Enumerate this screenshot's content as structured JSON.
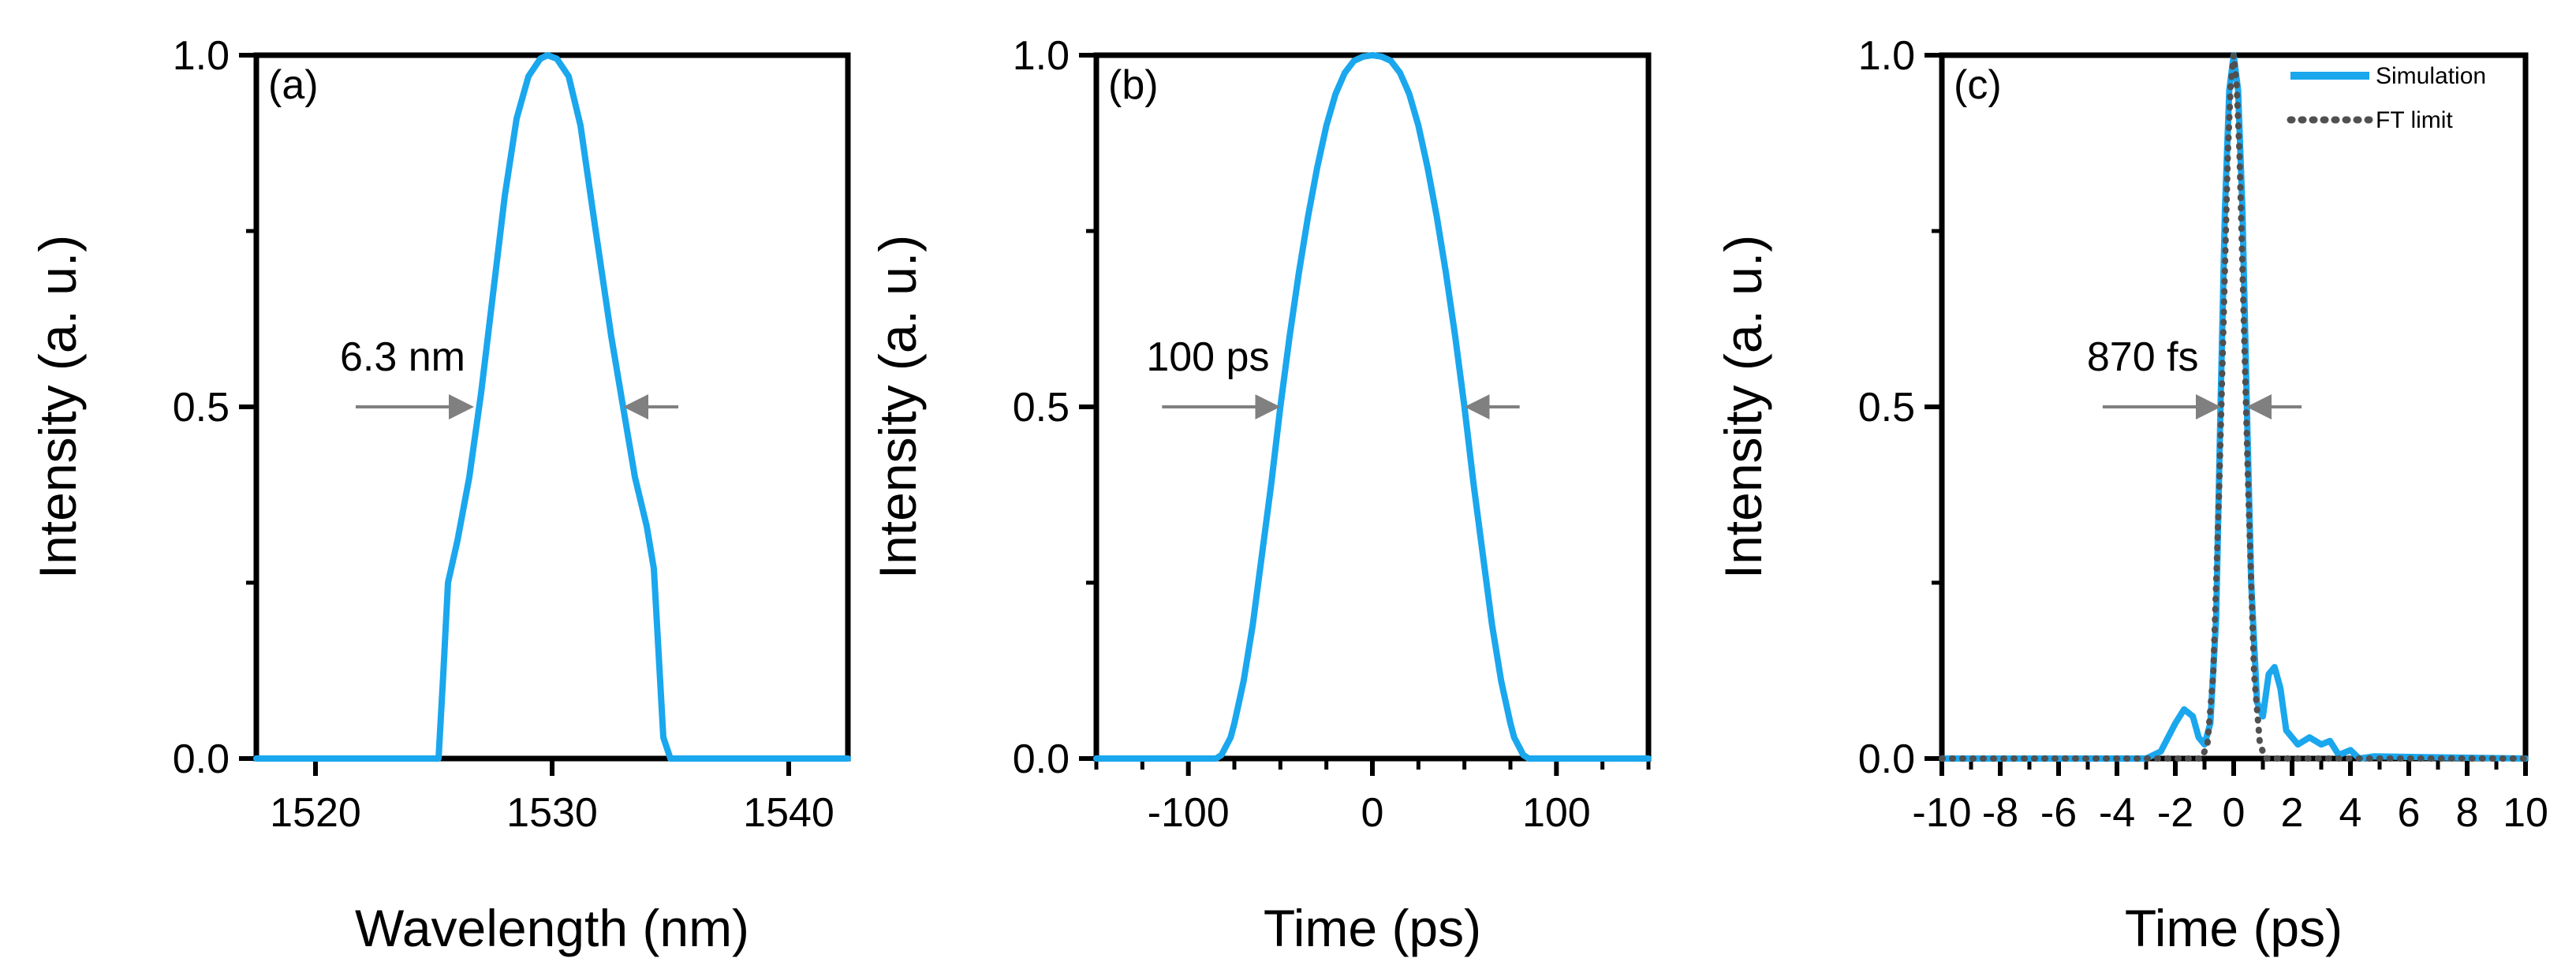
{
  "colors": {
    "simulation": "#1aa7ee",
    "ft_limit": "#505050",
    "arrow": "#808080",
    "axis": "#000000"
  },
  "chart_data": [
    {
      "type": "line",
      "panel_label": "(a)",
      "xlabel": "Wavelength (nm)",
      "ylabel": "Intensity (a. u.)",
      "xlim": [
        1517.5,
        1542.5
      ],
      "ylim": [
        0,
        1
      ],
      "xticks": [
        1520,
        1530,
        1540
      ],
      "xtick_labels": [
        "1520",
        "1530",
        "1540"
      ],
      "yticks": [
        0,
        0.5,
        1
      ],
      "ytick_labels": [
        "0.0",
        "0.5",
        "1.0"
      ],
      "annotation": {
        "text": "6.3 nm",
        "y": 0.5,
        "left_x": 1526.7,
        "right_x": 1533.0
      },
      "series": [
        {
          "name": "Simulation",
          "x": [
            1517.5,
            1525.2,
            1525.4,
            1525.6,
            1526.0,
            1526.5,
            1527.0,
            1527.5,
            1528.0,
            1528.5,
            1529.0,
            1529.5,
            1529.8,
            1530.2,
            1530.7,
            1531.2,
            1531.8,
            1532.5,
            1533.0,
            1533.5,
            1534.0,
            1534.3,
            1534.5,
            1534.7,
            1535.0,
            1542.5
          ],
          "y": [
            0,
            0,
            0.12,
            0.25,
            0.31,
            0.4,
            0.52,
            0.66,
            0.8,
            0.91,
            0.97,
            0.995,
            1.0,
            0.995,
            0.97,
            0.9,
            0.76,
            0.6,
            0.5,
            0.4,
            0.33,
            0.27,
            0.15,
            0.03,
            0,
            0
          ]
        }
      ]
    },
    {
      "type": "line",
      "panel_label": "(b)",
      "xlabel": "Time (ps)",
      "ylabel": "Intensity (a. u.)",
      "xlim": [
        -150,
        150
      ],
      "ylim": [
        0,
        1
      ],
      "xticks": [
        -100,
        0,
        100
      ],
      "xtick_labels": [
        "-100",
        "0",
        "100"
      ],
      "minor_xticks": [
        -150,
        -125,
        -75,
        -50,
        -25,
        25,
        50,
        75,
        125,
        150
      ],
      "yticks": [
        0,
        0.5,
        1
      ],
      "ytick_labels": [
        "0.0",
        "0.5",
        "1.0"
      ],
      "annotation": {
        "text": "100 ps",
        "y": 0.5,
        "left_x": -50,
        "right_x": 50
      },
      "series": [
        {
          "name": "Simulation",
          "x": [
            -150,
            -85,
            -82,
            -80,
            -77,
            -75,
            -70,
            -65,
            -60,
            -55,
            -50,
            -45,
            -40,
            -35,
            -30,
            -25,
            -20,
            -15,
            -10,
            -5,
            0,
            5,
            10,
            15,
            20,
            25,
            30,
            35,
            40,
            45,
            50,
            55,
            60,
            65,
            70,
            75,
            77,
            80,
            82,
            85,
            150
          ],
          "y": [
            0,
            0,
            0.005,
            0.015,
            0.03,
            0.05,
            0.11,
            0.19,
            0.29,
            0.39,
            0.5,
            0.6,
            0.69,
            0.77,
            0.84,
            0.9,
            0.945,
            0.975,
            0.992,
            0.998,
            1.0,
            0.998,
            0.992,
            0.975,
            0.945,
            0.9,
            0.84,
            0.77,
            0.69,
            0.6,
            0.5,
            0.39,
            0.29,
            0.19,
            0.11,
            0.05,
            0.03,
            0.015,
            0.005,
            0,
            0
          ]
        }
      ]
    },
    {
      "type": "line",
      "panel_label": "(c)",
      "xlabel": "Time (ps)",
      "ylabel": "Intensity (a. u.)",
      "xlim": [
        -10,
        10
      ],
      "ylim": [
        0,
        1
      ],
      "xticks": [
        -10,
        -8,
        -6,
        -4,
        -2,
        0,
        2,
        4,
        6,
        8,
        10
      ],
      "xtick_labels": [
        "-10",
        "-8",
        "-6",
        "-4",
        "-2",
        "0",
        "2",
        "4",
        "6",
        "8",
        "10"
      ],
      "minor_xticks": [
        -9,
        -7,
        -5,
        -3,
        -1,
        1,
        3,
        5,
        7,
        9
      ],
      "yticks": [
        0,
        0.5,
        1
      ],
      "ytick_labels": [
        "0.0",
        "0.5",
        "1.0"
      ],
      "annotation": {
        "text": "870 fs",
        "y": 0.5,
        "left_x": -0.435,
        "right_x": 0.435
      },
      "legend": {
        "position": "top-right",
        "entries": [
          "Simulation",
          "FT limit"
        ]
      },
      "series": [
        {
          "name": "Simulation",
          "style": "solid",
          "x": [
            -10,
            -3.0,
            -2.5,
            -2.0,
            -1.7,
            -1.4,
            -1.2,
            -1.0,
            -0.8,
            -0.6,
            -0.45,
            -0.3,
            -0.15,
            0,
            0.15,
            0.3,
            0.45,
            0.6,
            0.8,
            1.0,
            1.2,
            1.4,
            1.6,
            1.8,
            2.2,
            2.6,
            3.0,
            3.3,
            3.6,
            4.0,
            4.3,
            4.8,
            10
          ],
          "y": [
            0,
            0,
            0.01,
            0.05,
            0.07,
            0.06,
            0.03,
            0.02,
            0.05,
            0.2,
            0.5,
            0.78,
            0.95,
            1.0,
            0.95,
            0.78,
            0.5,
            0.25,
            0.08,
            0.06,
            0.12,
            0.13,
            0.1,
            0.04,
            0.02,
            0.03,
            0.02,
            0.025,
            0.005,
            0.012,
            0.0,
            0.003,
            0
          ]
        },
        {
          "name": "FT limit",
          "style": "dotted",
          "x": [
            -10,
            -1.1,
            -0.9,
            -0.7,
            -0.5,
            -0.35,
            -0.2,
            -0.1,
            0,
            0.1,
            0.2,
            0.35,
            0.5,
            0.7,
            0.9,
            1.1,
            10
          ],
          "y": [
            0,
            0,
            0.02,
            0.12,
            0.38,
            0.62,
            0.86,
            0.96,
            1.0,
            0.96,
            0.86,
            0.62,
            0.38,
            0.12,
            0.02,
            0,
            0
          ]
        }
      ]
    }
  ]
}
